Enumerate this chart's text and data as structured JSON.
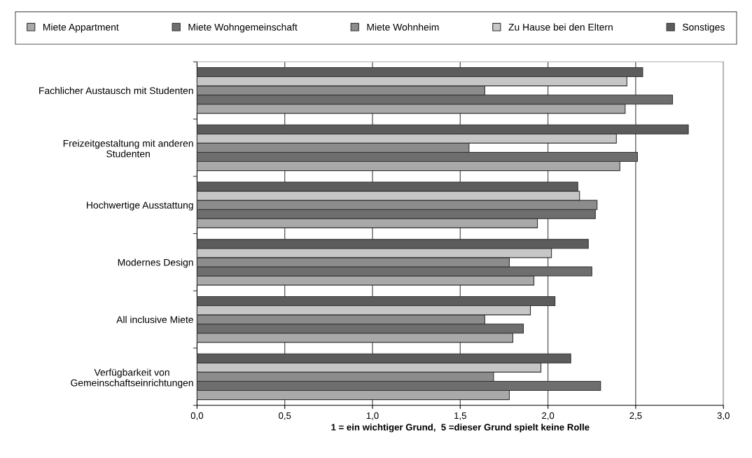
{
  "chart_data": {
    "type": "bar",
    "orientation": "horizontal",
    "xlabel": "1 = ein wichtiger Grund,  5 =dieser Grund spielt keine Rolle",
    "categories": [
      "Fachlicher Austausch mit Studenten",
      "Freizeitgestaltung mit anderen\nStudenten",
      "Hochwertige Ausstattung",
      "Modernes Design",
      "All inclusive Miete",
      "Verfügbarkeit von\nGemeinschaftseinrichtungen"
    ],
    "series": [
      {
        "name": "Miete Appartment",
        "color": "#a9a9a9",
        "values": [
          2.44,
          2.41,
          1.94,
          1.92,
          1.8,
          1.78
        ]
      },
      {
        "name": "Miete Wohngemeinschaft",
        "color": "#6e6e6e",
        "values": [
          2.71,
          2.51,
          2.27,
          2.25,
          1.86,
          2.3
        ]
      },
      {
        "name": "Miete Wohnheim",
        "color": "#8c8c8c",
        "values": [
          1.64,
          1.55,
          2.28,
          1.78,
          1.64,
          1.69
        ]
      },
      {
        "name": "Zu Hause bei den Eltern",
        "color": "#c6c6c6",
        "values": [
          2.45,
          2.39,
          2.18,
          2.02,
          1.9,
          1.96
        ]
      },
      {
        "name": "Sonstiges",
        "color": "#5c5c5c",
        "values": [
          2.54,
          2.8,
          2.17,
          2.23,
          2.04,
          2.13
        ]
      }
    ],
    "xlim": [
      0,
      3
    ],
    "xticks": [
      {
        "value": 0,
        "label": "0,0"
      },
      {
        "value": 0.5,
        "label": "0,5"
      },
      {
        "value": 1,
        "label": "1,0"
      },
      {
        "value": 1.5,
        "label": "1,5"
      },
      {
        "value": 2,
        "label": "2,0"
      },
      {
        "value": 2.5,
        "label": "2,5"
      },
      {
        "value": 3,
        "label": "3,0"
      }
    ],
    "grid": "x",
    "legend": "top"
  }
}
